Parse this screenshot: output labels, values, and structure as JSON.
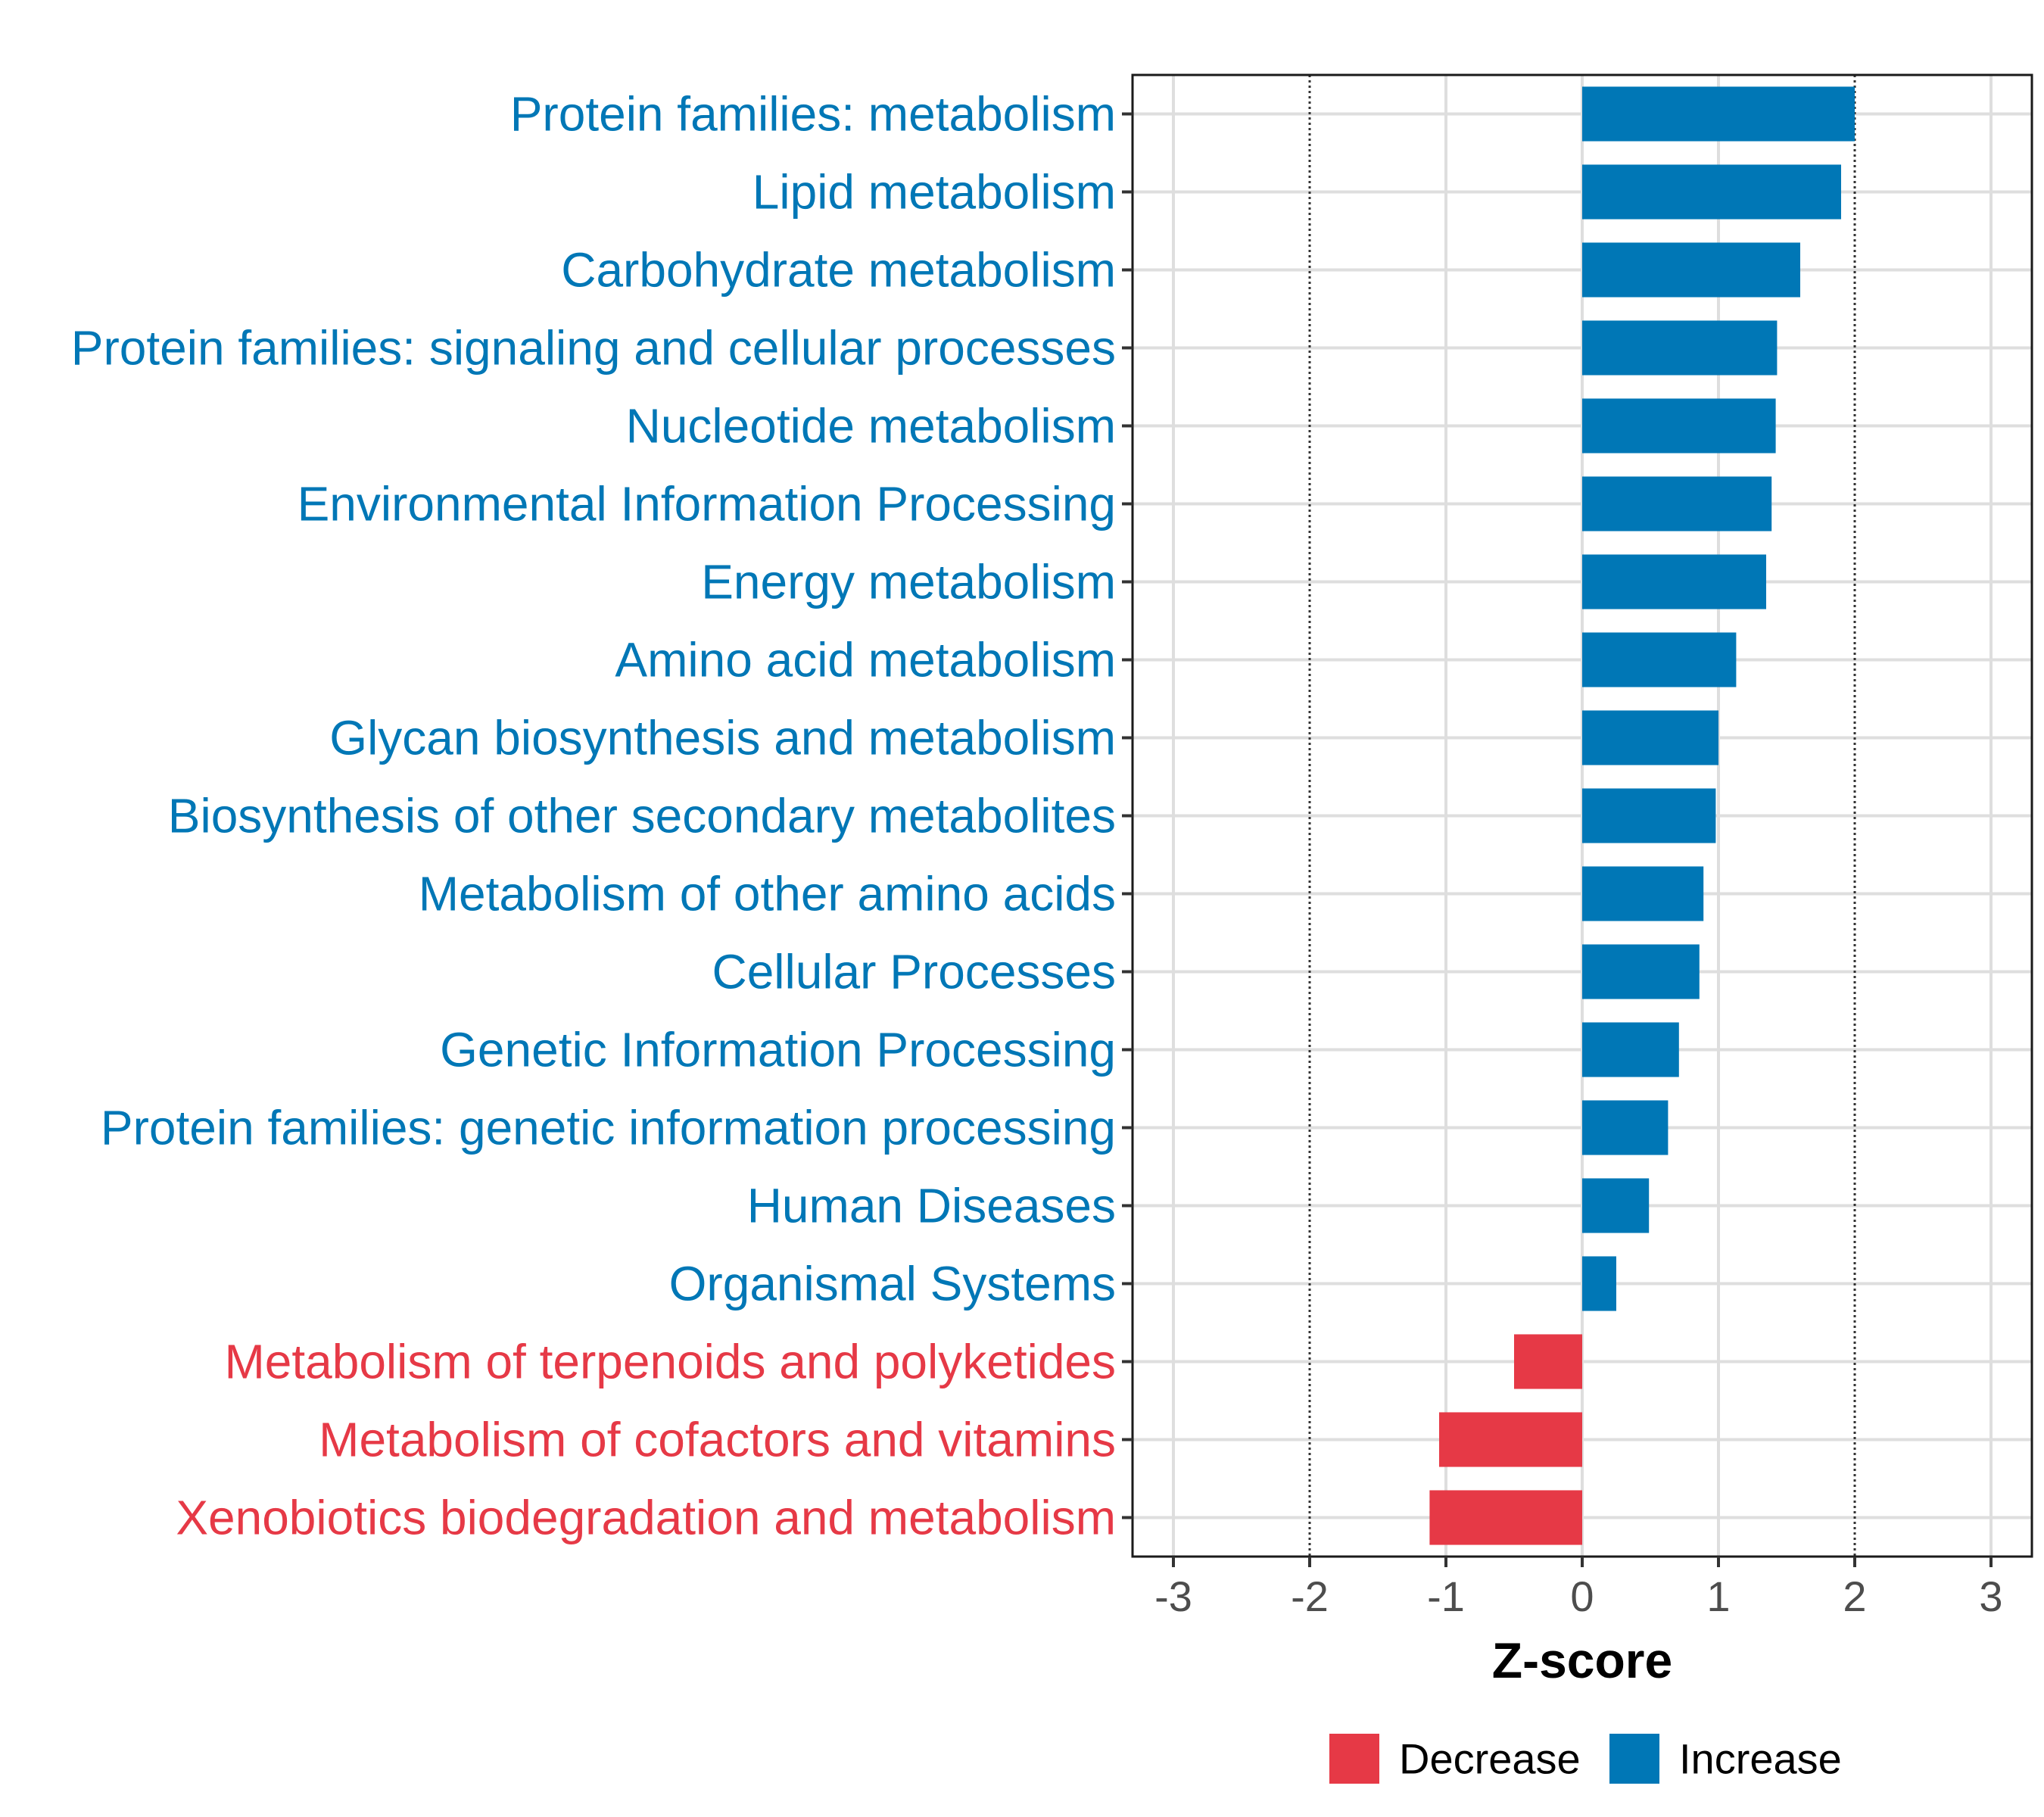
{
  "chart_data": {
    "type": "bar",
    "orientation": "horizontal",
    "xlabel": "Z-score",
    "ylabel": "",
    "xlim": [
      -3.3,
      3.3
    ],
    "xticks": [
      -3,
      -2,
      -1,
      0,
      1,
      2,
      3
    ],
    "xtick_labels": [
      "-3",
      "-2",
      "-1",
      "0",
      "1",
      "2",
      "3"
    ],
    "reference_lines": [
      -2,
      2
    ],
    "grid": true,
    "legend_position": "bottom",
    "legend": [
      {
        "label": "Decrease",
        "color": "#e63946"
      },
      {
        "label": "Increase",
        "color": "#0077b6"
      }
    ],
    "categories": [
      "Protein families: metabolism",
      "Lipid metabolism",
      "Carbohydrate metabolism",
      "Protein families: signaling and cellular processes",
      "Nucleotide metabolism",
      "Environmental Information Processing",
      "Energy metabolism",
      "Amino acid metabolism",
      "Glycan biosynthesis and metabolism",
      "Biosynthesis of other secondary metabolites",
      "Metabolism of other amino acids",
      "Cellular Processes",
      "Genetic Information Processing",
      "Protein families: genetic information processing",
      "Human Diseases",
      "Organismal Systems",
      "Metabolism of terpenoids and polyketides",
      "Metabolism of cofactors and vitamins",
      "Xenobiotics biodegradation and metabolism"
    ],
    "values": [
      2.0,
      1.9,
      1.6,
      1.43,
      1.42,
      1.39,
      1.35,
      1.13,
      1.0,
      0.98,
      0.89,
      0.86,
      0.71,
      0.63,
      0.49,
      0.25,
      -0.5,
      -1.05,
      -1.12
    ],
    "groups": [
      "Increase",
      "Increase",
      "Increase",
      "Increase",
      "Increase",
      "Increase",
      "Increase",
      "Increase",
      "Increase",
      "Increase",
      "Increase",
      "Increase",
      "Increase",
      "Increase",
      "Increase",
      "Increase",
      "Decrease",
      "Decrease",
      "Decrease"
    ]
  }
}
